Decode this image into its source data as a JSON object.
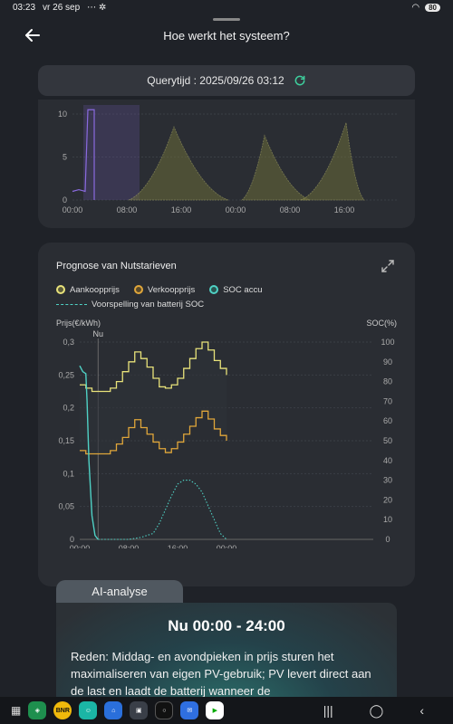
{
  "status": {
    "time": "03:23",
    "date": "vr 26 sep",
    "battery": "80"
  },
  "header": {
    "title": "Hoe werkt het systeem?"
  },
  "query": {
    "label": "Querytijd : 2025/09/26 03:12"
  },
  "chart_data": [
    {
      "type": "area",
      "title": "",
      "y_ticks": [
        "0",
        "5",
        "10"
      ],
      "x_ticks": [
        "00:00",
        "08:00",
        "16:00",
        "00:00",
        "08:00",
        "16:00"
      ],
      "ylim": [
        0,
        10
      ]
    },
    {
      "type": "line",
      "title": "Prognose van Nutstarieven",
      "legend": [
        "Aankoopprijs",
        "Verkoopprijs",
        "SOC accu",
        "Voorspelling van batterij SOC"
      ],
      "ylabel": "Prijs(€/kWh)",
      "y2label": "SOC(%)",
      "marker": "Nu",
      "x_ticks": [
        "00:00",
        "08:00",
        "16:00",
        "00:00"
      ],
      "y_ticks": [
        "0",
        "0,05",
        "0,1",
        "0,15",
        "0,2",
        "0,25",
        "0,3"
      ],
      "y2_ticks": [
        "0",
        "10",
        "20",
        "30",
        "40",
        "50",
        "60",
        "70",
        "80",
        "90",
        "100"
      ],
      "ylim": [
        0,
        0.3
      ],
      "y2lim": [
        0,
        100
      ],
      "x_hours": [
        0,
        1,
        2,
        3,
        4,
        5,
        6,
        7,
        8,
        9,
        10,
        11,
        12,
        13,
        14,
        15,
        16,
        17,
        18,
        19,
        20,
        21,
        22,
        23,
        24
      ],
      "series": [
        {
          "name": "Aankoopprijs",
          "color": "#e8e27a",
          "values": [
            0.235,
            0.23,
            0.225,
            0.225,
            0.225,
            0.23,
            0.24,
            0.255,
            0.27,
            0.285,
            0.275,
            0.262,
            0.245,
            0.232,
            0.23,
            0.235,
            0.245,
            0.26,
            0.275,
            0.29,
            0.3,
            0.288,
            0.272,
            0.26,
            0.25
          ]
        },
        {
          "name": "Verkoopprijs",
          "color": "#e0a63a",
          "values": [
            0.135,
            0.13,
            0.13,
            0.13,
            0.13,
            0.135,
            0.145,
            0.155,
            0.17,
            0.182,
            0.17,
            0.16,
            0.148,
            0.138,
            0.132,
            0.138,
            0.148,
            0.16,
            0.172,
            0.185,
            0.195,
            0.183,
            0.168,
            0.158,
            0.15
          ]
        }
      ],
      "soc": {
        "name": "SOC accu",
        "color": "#4fd1c5",
        "x": [
          0,
          0.5,
          1,
          1.2,
          1.5,
          2,
          2.5,
          3
        ],
        "values": [
          88,
          85,
          84,
          70,
          40,
          12,
          2,
          0
        ]
      },
      "soc_forecast": {
        "name": "Voorspelling van batterij SOC",
        "color": "#4fd1c5",
        "x": [
          3,
          8,
          10,
          12,
          13,
          14,
          15,
          16,
          17,
          18,
          19,
          20,
          21,
          22,
          23,
          24
        ],
        "values": [
          0,
          0,
          1,
          3,
          8,
          15,
          22,
          28,
          30,
          30,
          28,
          24,
          17,
          10,
          3,
          0
        ]
      }
    }
  ],
  "ai": {
    "tab": "AI-analyse",
    "heading": "Nu 00:00 - 24:00",
    "text": "Reden: Middag- en avondpieken in prijs sturen het maximaliseren van eigen PV-gebruik; PV levert direct aan de last en laadt de batterij wanneer de"
  },
  "nav": {
    "apps": [
      "BNR"
    ]
  }
}
